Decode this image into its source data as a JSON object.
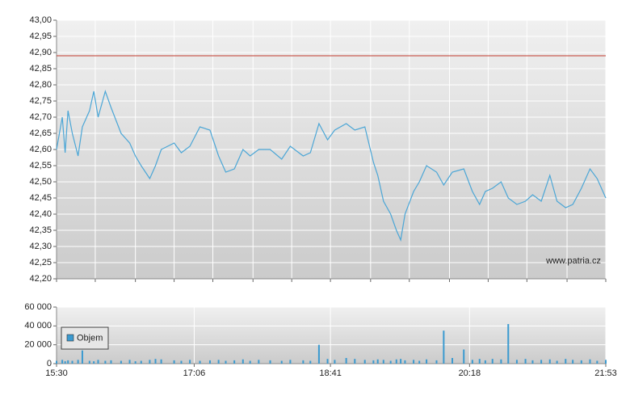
{
  "chart_data": [
    {
      "type": "line",
      "color": "#4ba6d6",
      "watermark": "www.patria.cz",
      "reference_line": 42.89,
      "reference_color": "#c0392b",
      "x": [
        930,
        934,
        936,
        938,
        941,
        945,
        948,
        953,
        956,
        959,
        964,
        968,
        975,
        981,
        985,
        989,
        995,
        999,
        1003,
        1012,
        1017,
        1023,
        1030,
        1037,
        1043,
        1048,
        1054,
        1060,
        1065,
        1071,
        1079,
        1087,
        1093,
        1102,
        1107,
        1113,
        1119,
        1124,
        1132,
        1138,
        1145,
        1151,
        1154,
        1158,
        1163,
        1167,
        1170,
        1173,
        1179,
        1183,
        1188,
        1195,
        1200,
        1206,
        1214,
        1220,
        1225,
        1229,
        1234,
        1240,
        1245,
        1251,
        1257,
        1262,
        1268,
        1274,
        1279,
        1285,
        1290,
        1296,
        1302,
        1307,
        1313
      ],
      "values": [
        42.6,
        42.7,
        42.59,
        42.72,
        42.65,
        42.58,
        42.67,
        42.72,
        42.78,
        42.7,
        42.78,
        42.73,
        42.65,
        42.62,
        42.58,
        42.55,
        42.51,
        42.55,
        42.6,
        42.62,
        42.59,
        42.61,
        42.67,
        42.66,
        42.58,
        42.53,
        42.54,
        42.6,
        42.58,
        42.6,
        42.6,
        42.57,
        42.61,
        42.58,
        42.59,
        42.68,
        42.63,
        42.66,
        42.68,
        42.66,
        42.67,
        42.56,
        42.52,
        42.44,
        42.4,
        42.35,
        42.32,
        42.4,
        42.47,
        42.5,
        42.55,
        42.53,
        42.49,
        42.53,
        42.54,
        42.47,
        42.43,
        42.47,
        42.48,
        42.5,
        42.45,
        42.43,
        42.44,
        42.46,
        42.44,
        42.52,
        42.44,
        42.42,
        42.43,
        42.48,
        42.54,
        42.51,
        42.45
      ],
      "xlim": [
        930,
        1313
      ],
      "xgrid": [
        930,
        957,
        985,
        1012,
        1039,
        1067,
        1094,
        1121,
        1149,
        1176,
        1204,
        1231,
        1258,
        1286,
        1313
      ],
      "ylim": [
        42.2,
        43.0
      ],
      "yticks": [
        {
          "value": 42.2,
          "label": "42,20"
        },
        {
          "value": 42.25,
          "label": "42,25"
        },
        {
          "value": 42.3,
          "label": "42,30"
        },
        {
          "value": 42.35,
          "label": "42,35"
        },
        {
          "value": 42.4,
          "label": "42,40"
        },
        {
          "value": 42.45,
          "label": "42,45"
        },
        {
          "value": 42.5,
          "label": "42,50"
        },
        {
          "value": 42.55,
          "label": "42,55"
        },
        {
          "value": 42.6,
          "label": "42,60"
        },
        {
          "value": 42.65,
          "label": "42,65"
        },
        {
          "value": 42.7,
          "label": "42,70"
        },
        {
          "value": 42.75,
          "label": "42,75"
        },
        {
          "value": 42.8,
          "label": "42,80"
        },
        {
          "value": 42.85,
          "label": "42,85"
        },
        {
          "value": 42.9,
          "label": "42,90"
        },
        {
          "value": 42.95,
          "label": "42,95"
        },
        {
          "value": 43.0,
          "label": "43,00"
        }
      ],
      "grid": true
    },
    {
      "type": "bar",
      "x": [
        930,
        934,
        936,
        938,
        941,
        945,
        948,
        953,
        956,
        959,
        964,
        968,
        975,
        981,
        985,
        989,
        995,
        999,
        1003,
        1012,
        1017,
        1023,
        1030,
        1037,
        1043,
        1048,
        1054,
        1060,
        1065,
        1071,
        1079,
        1087,
        1093,
        1102,
        1107,
        1113,
        1119,
        1124,
        1132,
        1138,
        1145,
        1151,
        1154,
        1158,
        1163,
        1167,
        1170,
        1173,
        1179,
        1183,
        1188,
        1195,
        1200,
        1206,
        1214,
        1220,
        1225,
        1229,
        1234,
        1240,
        1245,
        1251,
        1257,
        1262,
        1268,
        1274,
        1279,
        1285,
        1290,
        1296,
        1302,
        1307,
        1313
      ],
      "series": [
        {
          "name": "Objem",
          "color": "#3a9ad0",
          "values": [
            3000,
            4000,
            2500,
            3500,
            3000,
            4000,
            14000,
            3000,
            2500,
            4000,
            3000,
            3500,
            3000,
            4000,
            2500,
            3000,
            4000,
            5000,
            4500,
            3500,
            3000,
            4000,
            3000,
            3500,
            4000,
            3000,
            3500,
            4500,
            3000,
            4000,
            3500,
            3000,
            4000,
            3500,
            3000,
            20000,
            5000,
            4000,
            6000,
            5000,
            4000,
            3500,
            4500,
            4000,
            3000,
            4500,
            5000,
            3500,
            4000,
            3000,
            4500,
            3500,
            35000,
            6000,
            15000,
            4000,
            5000,
            3500,
            5000,
            4500,
            42000,
            4000,
            5000,
            3500,
            4000,
            4500,
            3000,
            5000,
            4000,
            3500,
            4500,
            3000,
            4000
          ]
        }
      ],
      "xlim": [
        930,
        1313
      ],
      "xticks": [
        {
          "value": 930,
          "label": "15:30"
        },
        {
          "value": 1026,
          "label": "17:06"
        },
        {
          "value": 1121,
          "label": "18:41"
        },
        {
          "value": 1218,
          "label": "20:18"
        },
        {
          "value": 1313,
          "label": "21:53"
        }
      ],
      "ylim": [
        0,
        60000
      ],
      "yticks": [
        0,
        {
          "value": 20000,
          "label": "20 000"
        },
        {
          "value": 40000,
          "label": "40 000"
        },
        {
          "value": 60000,
          "label": "60 000"
        }
      ],
      "grid": true
    }
  ]
}
